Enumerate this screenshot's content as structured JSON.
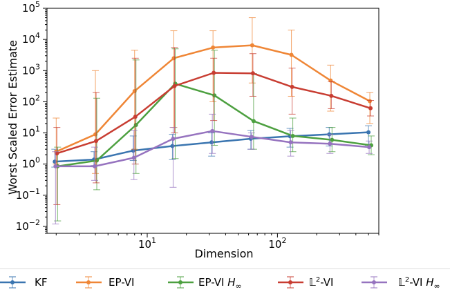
{
  "chart_data": {
    "type": "line",
    "xlabel": "Dimension",
    "ylabel": "Worst Scaled Error Estimate",
    "xscale": "log",
    "yscale": "log",
    "xlim": [
      1.7,
      600
    ],
    "ylim": [
      0.006,
      100000
    ],
    "xticks": [
      {
        "value": 10,
        "base": "10",
        "exp": "1"
      },
      {
        "value": 100,
        "base": "10",
        "exp": "2"
      }
    ],
    "yticks": [
      {
        "value": 0.01,
        "base": "10",
        "exp": "−2"
      },
      {
        "value": 0.1,
        "base": "10",
        "exp": "−1"
      },
      {
        "value": 1,
        "base": "10",
        "exp": "0"
      },
      {
        "value": 10,
        "base": "10",
        "exp": "1"
      },
      {
        "value": 100,
        "base": "10",
        "exp": "2"
      },
      {
        "value": 1000,
        "base": "10",
        "exp": "3"
      },
      {
        "value": 10000,
        "base": "10",
        "exp": "4"
      },
      {
        "value": 100000,
        "base": "10",
        "exp": "5"
      }
    ],
    "legend_position": "bottom",
    "x": [
      2,
      4,
      8,
      16,
      32,
      64,
      128,
      256,
      512
    ],
    "series": [
      {
        "name": "KF",
        "label_main": "KF",
        "label_sub": "",
        "color": "#3a75b0",
        "values": [
          1.2,
          1.4,
          2.7,
          3.8,
          5.0,
          6.5,
          7.8,
          9.0,
          10.5
        ],
        "lower": [
          0.8,
          0.9,
          1.3,
          1.4,
          1.8,
          3.0,
          3.5,
          3.8,
          4.0
        ],
        "upper": [
          3.0,
          2.5,
          8.0,
          9.0,
          10.0,
          12.0,
          14.0,
          15.0,
          17.0
        ]
      },
      {
        "name": "EP-VI",
        "label_main": "EP-VI",
        "label_sub": "",
        "color": "#ef8636",
        "values": [
          2.5,
          9.0,
          220,
          2500,
          5500,
          6500,
          3200,
          480,
          105
        ],
        "lower": [
          1.0,
          0.5,
          3.0,
          15,
          100,
          400,
          150,
          50,
          20
        ],
        "upper": [
          30,
          1000,
          4500,
          19000,
          19000,
          50000,
          20000,
          1500,
          200
        ]
      },
      {
        "name": "EP-VI H∞",
        "label_main": "EP-VI ",
        "label_sub": "∞",
        "color": "#4da040",
        "values": [
          0.85,
          1.3,
          18,
          380,
          160,
          24,
          8.0,
          6.0,
          4.0
        ],
        "lower": [
          0.015,
          0.15,
          0.5,
          1.5,
          4.0,
          3.0,
          2.5,
          2.5,
          2.0
        ],
        "upper": [
          3.5,
          130,
          2200,
          5000,
          4500,
          800,
          30,
          15,
          8
        ]
      },
      {
        "name": "L²-VI",
        "label_main": "-VI",
        "label_sub": "",
        "color": "#c83d32",
        "values": [
          2.2,
          5.5,
          33,
          320,
          850,
          820,
          300,
          155,
          62
        ],
        "lower": [
          0.05,
          0.25,
          1.0,
          10,
          25,
          150,
          40,
          60,
          35
        ],
        "upper": [
          15,
          200,
          2500,
          5500,
          2500,
          3500,
          1200,
          450,
          110
        ]
      },
      {
        "name": "L²-VI H∞",
        "label_main": "-VI ",
        "label_sub": "∞",
        "color": "#9673bf",
        "values": [
          0.85,
          0.85,
          1.6,
          6.5,
          11.5,
          7.5,
          5.0,
          4.5,
          3.5
        ],
        "lower": [
          0.012,
          0.3,
          0.32,
          0.18,
          2.2,
          3.0,
          1.8,
          2.2,
          2.2
        ],
        "upper": [
          2.5,
          3.5,
          12,
          15,
          40,
          10,
          12,
          9,
          5.5
        ]
      }
    ]
  }
}
